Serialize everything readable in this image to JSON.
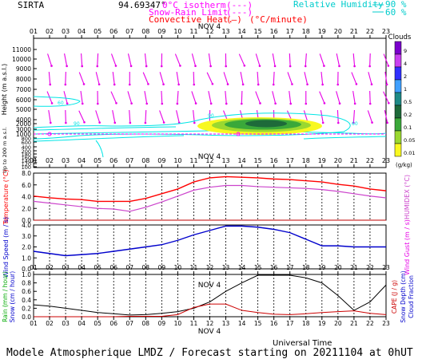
{
  "header": {
    "station": "SIRTA",
    "coords": "94.69347°",
    "legend_isotherm": "0°C isotherm",
    "legend_snow": "Snow-Rain Limit",
    "legend_conv": "Convective Heat.",
    "legend_conv_unit": "(°C/minute)",
    "legend_rh": "Relative Humidity",
    "rh_90": "90 %",
    "rh_60": "60 %"
  },
  "footer": {
    "universal_time": "Universal Time",
    "model_line": "Modele Atmospherique LMDZ / Forecast starting on 20211104 at 0hUT"
  },
  "colors": {
    "isotherm": "#ff00ff",
    "convective": "#ff0000",
    "rh": "#00e5e5",
    "wind_barb": "#e600e6",
    "temp": "#ff0000",
    "humidex": "#cc44cc",
    "wind_speed": "#0000cc",
    "rain": "#cc0000",
    "snow": "#00aa00",
    "cloud_fraction": "#000000"
  },
  "chart_data": [
    {
      "type": "heatmap",
      "date_label": "NOV  4",
      "x": [
        "01",
        "02",
        "03",
        "04",
        "05",
        "06",
        "07",
        "08",
        "09",
        "10",
        "11",
        "12",
        "13",
        "14",
        "15",
        "16",
        "17",
        "18",
        "19",
        "20",
        "21",
        "22",
        "23"
      ],
      "ylabel": "Height  (m a.s.l.)",
      "y_ticks": [
        "11000",
        "10000",
        "9000",
        "8000",
        "7000",
        "6000",
        "5000",
        "4000",
        "3000",
        "2000",
        "1000",
        "800",
        "600",
        "400",
        "200",
        "180",
        "160",
        "140",
        "120",
        "100"
      ],
      "y_note": "Up to 200 m a.s.l.",
      "clouds_title": "Clouds",
      "clouds_unit": "(g/kg)",
      "cloud_scale": [
        {
          "label": "9",
          "color": "#7a00cc"
        },
        {
          "label": "4",
          "color": "#c840f0"
        },
        {
          "label": "2",
          "color": "#3030ff"
        },
        {
          "label": "1",
          "color": "#3fa0ff"
        },
        {
          "label": "0.5",
          "color": "#1e8a86"
        },
        {
          "label": "0.2",
          "color": "#1e6a3a"
        },
        {
          "label": "0.1",
          "color": "#3aa83a"
        },
        {
          "label": "0.05",
          "color": "#9ad830"
        },
        {
          "label": "0.01",
          "color": "#f8f820"
        }
      ],
      "rh_contour_labels": [
        "60",
        "90",
        "90",
        "60",
        "60"
      ]
    },
    {
      "type": "line",
      "x": [
        "01",
        "02",
        "03",
        "04",
        "05",
        "06",
        "07",
        "08",
        "09",
        "10",
        "11",
        "12",
        "13",
        "14",
        "15",
        "16",
        "17",
        "18",
        "19",
        "20",
        "21",
        "22",
        "23"
      ],
      "ylabel_left": "Temperature (°C)",
      "ylabel_right": "HUMIDEX (°C)",
      "y_ticks": [
        "8.0",
        "6.0",
        "4.0",
        "2.0",
        "0.0"
      ],
      "ylim": [
        0,
        8
      ],
      "series": [
        {
          "name": "Temperature",
          "values": [
            4.1,
            3.8,
            3.6,
            3.5,
            3.2,
            3.2,
            3.2,
            3.7,
            4.5,
            5.3,
            6.5,
            7.2,
            7.4,
            7.3,
            7.2,
            7.0,
            6.9,
            6.7,
            6.5,
            6.1,
            5.8,
            5.3,
            5.0
          ]
        },
        {
          "name": "HUMIDEX",
          "values": [
            3.2,
            2.9,
            2.6,
            2.3,
            2.0,
            1.9,
            1.5,
            2.2,
            3.1,
            4.1,
            5.1,
            5.6,
            5.9,
            5.9,
            5.7,
            5.6,
            5.5,
            5.4,
            5.2,
            4.9,
            4.5,
            4.1,
            3.8
          ]
        }
      ]
    },
    {
      "type": "line",
      "x": [
        "01",
        "02",
        "03",
        "04",
        "05",
        "06",
        "07",
        "08",
        "09",
        "10",
        "11",
        "12",
        "13",
        "14",
        "15",
        "16",
        "17",
        "18",
        "19",
        "20",
        "21",
        "22",
        "23"
      ],
      "ylabel_left": "Wind Speed (m / s)",
      "ylabel_right": "Wind Gust (m / s)",
      "y_ticks": [
        "4.0",
        "3.0",
        "2.0",
        "1.0",
        "0.0"
      ],
      "ylim": [
        0,
        4
      ],
      "series": [
        {
          "name": "Wind Speed",
          "values": [
            1.6,
            1.4,
            1.2,
            1.3,
            1.4,
            1.6,
            1.8,
            2.0,
            2.2,
            2.6,
            3.1,
            3.5,
            3.9,
            3.9,
            3.8,
            3.6,
            3.3,
            2.7,
            2.1,
            2.1,
            2.0,
            2.0,
            2.0
          ]
        }
      ]
    },
    {
      "type": "line",
      "date_label": "NOV  4",
      "x": [
        "01",
        "02",
        "03",
        "04",
        "05",
        "06",
        "07",
        "08",
        "09",
        "10",
        "11",
        "12",
        "13",
        "14",
        "15",
        "16",
        "17",
        "18",
        "19",
        "20",
        "21",
        "22",
        "23"
      ],
      "ylabel_left_1": "Rain (mm / hour)",
      "ylabel_left_2": "Snow (cm / hour)",
      "ylabel_right_1": "CAPE (J / g)",
      "ylabel_right_2": "Snow Depth (cm)",
      "ylabel_right_3": "Cloud Fraction",
      "y_ticks": [
        "1.0",
        "0.8",
        "0.6",
        "0.4",
        "0.2",
        "0.0"
      ],
      "ylim": [
        0,
        1
      ],
      "series": [
        {
          "name": "Cloud Fraction",
          "values": [
            0.28,
            0.25,
            0.2,
            0.15,
            0.1,
            0.07,
            0.04,
            0.05,
            0.08,
            0.12,
            0.2,
            0.35,
            0.6,
            0.8,
            0.98,
            0.98,
            0.98,
            0.92,
            0.8,
            0.5,
            0.15,
            0.35,
            0.75
          ]
        },
        {
          "name": "Rain",
          "values": [
            0.0,
            0.0,
            0.0,
            0.0,
            0.0,
            0.0,
            0.01,
            0.01,
            0.01,
            0.05,
            0.22,
            0.3,
            0.3,
            0.15,
            0.1,
            0.06,
            0.05,
            0.07,
            0.1,
            0.12,
            0.14,
            0.08,
            0.05
          ]
        }
      ]
    }
  ]
}
